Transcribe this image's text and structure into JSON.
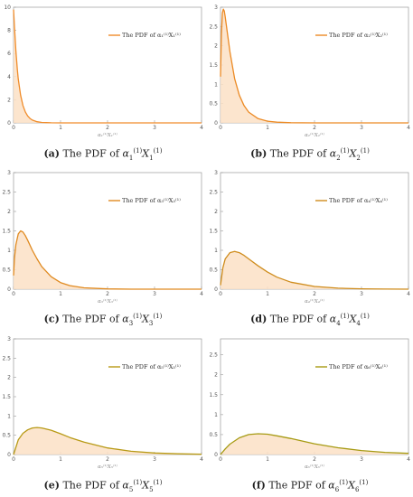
{
  "chart_data": [
    {
      "type": "area",
      "caption_tag": "(a)",
      "caption_text": "The PDF of ",
      "subscript": "1",
      "xlabel": "α₁⁽¹⁾X₁⁽¹⁾",
      "legend_label": "The PDF of α₁⁽¹⁾X₁⁽¹⁾",
      "legend_position": "top-right",
      "xlim": [
        0,
        4
      ],
      "ylim": [
        0,
        10
      ],
      "xticks": [
        0,
        1,
        2,
        3,
        4
      ],
      "yticks": [
        0,
        2,
        4,
        6,
        8,
        10
      ],
      "color": "#f08c2a",
      "fill": "#fbe1c6",
      "x": [
        0,
        0.02,
        0.05,
        0.08,
        0.1,
        0.15,
        0.2,
        0.25,
        0.3,
        0.35,
        0.4,
        0.5,
        0.6,
        0.7,
        0.8,
        1.0,
        1.5,
        2.0,
        3.0,
        4.0
      ],
      "y": [
        9.8,
        8.3,
        6.2,
        4.6,
        3.8,
        2.4,
        1.5,
        0.95,
        0.6,
        0.38,
        0.24,
        0.1,
        0.04,
        0.02,
        0.01,
        0.003,
        0,
        0,
        0,
        0
      ]
    },
    {
      "type": "area",
      "caption_tag": "(b)",
      "caption_text": "The PDF of ",
      "subscript": "2",
      "xlabel": "α₂⁽¹⁾X₂⁽¹⁾",
      "legend_label": "The PDF of α₂⁽¹⁾X₂⁽¹⁾",
      "legend_position": "top-right",
      "xlim": [
        0,
        4
      ],
      "ylim": [
        0,
        3
      ],
      "xticks": [
        0,
        1,
        2,
        3,
        4
      ],
      "yticks": [
        0,
        0.5,
        1.0,
        1.5,
        2.0,
        2.5,
        3.0
      ],
      "color": "#ec8a24",
      "fill": "#fbe1c6",
      "x": [
        0,
        0.02,
        0.04,
        0.06,
        0.08,
        0.1,
        0.15,
        0.2,
        0.3,
        0.4,
        0.5,
        0.6,
        0.8,
        1.0,
        1.2,
        1.5,
        2.0,
        3.0,
        4.0
      ],
      "y": [
        1.2,
        2.3,
        2.85,
        2.95,
        2.9,
        2.75,
        2.3,
        1.85,
        1.15,
        0.72,
        0.45,
        0.28,
        0.11,
        0.045,
        0.018,
        0.005,
        0,
        0,
        0
      ]
    },
    {
      "type": "area",
      "caption_tag": "(c)",
      "caption_text": "The PDF of ",
      "subscript": "3",
      "xlabel": "α₃⁽¹⁾X₃⁽¹⁾",
      "legend_label": "The PDF of α₃⁽¹⁾X₃⁽¹⁾",
      "legend_position": "top-right",
      "xlim": [
        0,
        4
      ],
      "ylim": [
        0,
        3
      ],
      "xticks": [
        0,
        1,
        2,
        3,
        4
      ],
      "yticks": [
        0,
        0.5,
        1.0,
        1.5,
        2.0,
        2.5,
        3.0
      ],
      "color": "#e08a20",
      "fill": "#fbe1c6",
      "x": [
        0,
        0.02,
        0.05,
        0.1,
        0.15,
        0.2,
        0.25,
        0.3,
        0.4,
        0.5,
        0.6,
        0.8,
        1.0,
        1.2,
        1.5,
        2.0,
        2.5,
        3.0,
        4.0
      ],
      "y": [
        0.35,
        0.8,
        1.15,
        1.42,
        1.5,
        1.47,
        1.38,
        1.26,
        1.0,
        0.78,
        0.58,
        0.32,
        0.17,
        0.09,
        0.035,
        0.007,
        0,
        0,
        0
      ]
    },
    {
      "type": "area",
      "caption_tag": "(d)",
      "caption_text": "The PDF of ",
      "subscript": "4",
      "xlabel": "α₄⁽¹⁾X₄⁽¹⁾",
      "legend_label": "The PDF of α₄⁽¹⁾X₄⁽¹⁾",
      "legend_position": "top-right",
      "xlim": [
        0,
        4
      ],
      "ylim": [
        0,
        3
      ],
      "xticks": [
        0,
        1,
        2,
        3,
        4
      ],
      "yticks": [
        0,
        0.5,
        1.0,
        1.5,
        2.0,
        2.5,
        3.0
      ],
      "color": "#cf8c1c",
      "fill": "#fbe1c6",
      "x": [
        0,
        0.05,
        0.1,
        0.2,
        0.3,
        0.4,
        0.5,
        0.6,
        0.8,
        1.0,
        1.2,
        1.5,
        2.0,
        2.5,
        3.0,
        3.5,
        4.0
      ],
      "y": [
        0.1,
        0.55,
        0.78,
        0.94,
        0.97,
        0.94,
        0.87,
        0.78,
        0.6,
        0.44,
        0.31,
        0.18,
        0.07,
        0.025,
        0.009,
        0.003,
        0
      ]
    },
    {
      "type": "area",
      "caption_tag": "(e)",
      "caption_text": "The PDF of ",
      "subscript": "5",
      "xlabel": "α₅⁽¹⁾X₅⁽¹⁾",
      "legend_label": "The PDF of α₅⁽¹⁾X₅⁽¹⁾",
      "legend_position": "top-right",
      "xlim": [
        0,
        4
      ],
      "ylim": [
        0,
        3
      ],
      "xticks": [
        0,
        1,
        2,
        3,
        4
      ],
      "yticks": [
        0,
        0.5,
        1.0,
        1.5,
        2.0,
        2.5,
        3.0
      ],
      "color": "#b89a16",
      "fill": "#fbe1c6",
      "x": [
        0,
        0.1,
        0.2,
        0.3,
        0.4,
        0.5,
        0.6,
        0.8,
        1.0,
        1.2,
        1.5,
        2.0,
        2.5,
        3.0,
        3.5,
        4.0
      ],
      "y": [
        0,
        0.38,
        0.55,
        0.64,
        0.69,
        0.7,
        0.69,
        0.63,
        0.54,
        0.44,
        0.32,
        0.17,
        0.085,
        0.04,
        0.018,
        0.008
      ]
    },
    {
      "type": "area",
      "caption_tag": "(f)",
      "caption_text": "The PDF of ",
      "subscript": "6",
      "xlabel": "α₆⁽¹⁾X₆⁽¹⁾",
      "legend_label": "The PDF of α₆⁽¹⁾X₆⁽¹⁾",
      "legend_position": "top-right",
      "xlim": [
        0,
        4
      ],
      "ylim": [
        0,
        2.9
      ],
      "xticks": [
        0,
        1,
        2,
        3,
        4
      ],
      "yticks": [
        0,
        0.5,
        1.0,
        1.5,
        2.0,
        2.5
      ],
      "color": "#a79b14",
      "fill": "#fbe1c6",
      "x": [
        0,
        0.1,
        0.2,
        0.4,
        0.6,
        0.8,
        1.0,
        1.2,
        1.5,
        2.0,
        2.5,
        3.0,
        3.5,
        4.0
      ],
      "y": [
        0,
        0.14,
        0.26,
        0.42,
        0.5,
        0.52,
        0.51,
        0.47,
        0.4,
        0.27,
        0.17,
        0.1,
        0.055,
        0.03
      ]
    }
  ]
}
